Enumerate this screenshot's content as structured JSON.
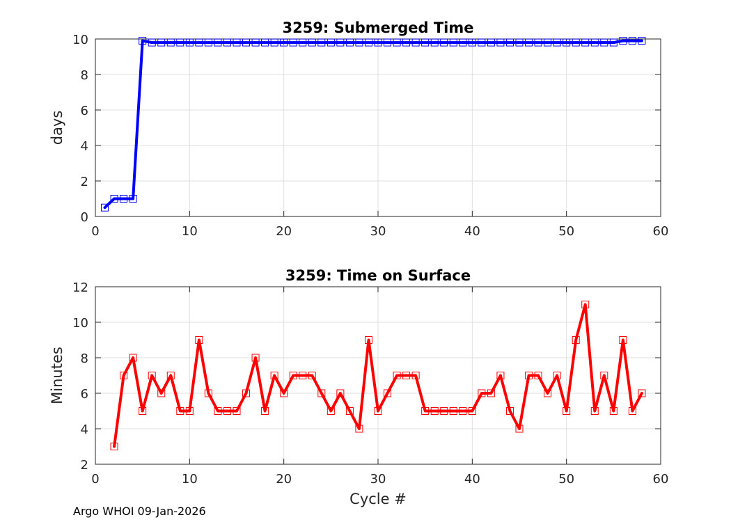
{
  "footer": "Argo WHOI 09-Jan-2026",
  "chart_data": [
    {
      "type": "line",
      "title": "3259: Submerged Time",
      "xlabel": "",
      "ylabel": "days",
      "xlim": [
        0,
        60
      ],
      "ylim": [
        0,
        10
      ],
      "xticks": [
        0,
        10,
        20,
        30,
        40,
        50,
        60
      ],
      "yticks": [
        0,
        2,
        4,
        6,
        8,
        10
      ],
      "grid": true,
      "color": "#0000ff",
      "series": [
        {
          "name": "Submerged Time",
          "x": [
            1,
            2,
            3,
            4,
            5,
            6,
            7,
            8,
            9,
            10,
            11,
            12,
            13,
            14,
            15,
            16,
            17,
            18,
            19,
            20,
            21,
            22,
            23,
            24,
            25,
            26,
            27,
            28,
            29,
            30,
            31,
            32,
            33,
            34,
            35,
            36,
            37,
            38,
            39,
            40,
            41,
            42,
            43,
            44,
            45,
            46,
            47,
            48,
            49,
            50,
            51,
            52,
            53,
            54,
            55,
            56,
            57,
            58
          ],
          "values": [
            0.5,
            1,
            1,
            1,
            9.9,
            9.8,
            9.8,
            9.8,
            9.8,
            9.8,
            9.8,
            9.8,
            9.8,
            9.8,
            9.8,
            9.8,
            9.8,
            9.8,
            9.8,
            9.8,
            9.8,
            9.8,
            9.8,
            9.8,
            9.8,
            9.8,
            9.8,
            9.8,
            9.8,
            9.8,
            9.8,
            9.8,
            9.8,
            9.8,
            9.8,
            9.8,
            9.8,
            9.8,
            9.8,
            9.8,
            9.8,
            9.8,
            9.8,
            9.8,
            9.8,
            9.8,
            9.8,
            9.8,
            9.8,
            9.8,
            9.8,
            9.8,
            9.8,
            9.8,
            9.8,
            9.9,
            9.9,
            9.9
          ]
        }
      ]
    },
    {
      "type": "line",
      "title": "3259: Time on Surface",
      "xlabel": "Cycle #",
      "ylabel": "Minutes",
      "xlim": [
        0,
        60
      ],
      "ylim": [
        2,
        12
      ],
      "xticks": [
        0,
        10,
        20,
        30,
        40,
        50,
        60
      ],
      "yticks": [
        2,
        4,
        6,
        8,
        10,
        12
      ],
      "grid": true,
      "color": "#ff0000",
      "series": [
        {
          "name": "Time on Surface",
          "x": [
            2,
            3,
            4,
            5,
            6,
            7,
            8,
            9,
            10,
            11,
            12,
            13,
            14,
            15,
            16,
            17,
            18,
            19,
            20,
            21,
            22,
            23,
            24,
            25,
            26,
            27,
            28,
            29,
            30,
            31,
            32,
            33,
            34,
            35,
            36,
            37,
            38,
            39,
            40,
            41,
            42,
            43,
            44,
            45,
            46,
            47,
            48,
            49,
            50,
            51,
            52,
            53,
            54,
            55,
            56,
            57,
            58
          ],
          "values": [
            3,
            7,
            8,
            5,
            7,
            6,
            7,
            5,
            5,
            9,
            6,
            5,
            5,
            5,
            6,
            8,
            5,
            7,
            6,
            7,
            7,
            7,
            6,
            5,
            6,
            5,
            4,
            9,
            5,
            6,
            7,
            7,
            7,
            5,
            5,
            5,
            5,
            5,
            5,
            6,
            6,
            7,
            5,
            4,
            7,
            7,
            6,
            7,
            5,
            9,
            11,
            5,
            7,
            5,
            9,
            5,
            6
          ]
        }
      ]
    }
  ]
}
